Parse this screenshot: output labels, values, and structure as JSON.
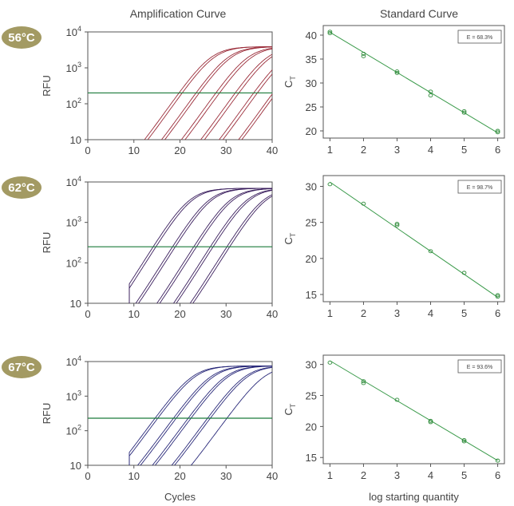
{
  "headers": {
    "amplification": "Amplification Curve",
    "standard": "Standard Curve"
  },
  "colors": {
    "badge": "#a39a63",
    "threshold": "#1a7a3a",
    "fit_line": "#3a9a4a",
    "point": "#2e8b3a"
  },
  "chart_data": [
    {
      "type": "line",
      "panel": "amplification",
      "badge": "56°C",
      "xlabel": "",
      "ylabel": "RFU",
      "log_y": true,
      "xlim": [
        0,
        40
      ],
      "ylim": [
        10,
        10000
      ],
      "x_ticks": [
        "0",
        "10",
        "20",
        "30",
        "40"
      ],
      "y_ticks": [
        "10",
        "10²",
        "10³",
        "10⁴"
      ],
      "threshold": 200,
      "plateau": 3900,
      "line_color": "#9b2d3a",
      "curves_ct": [
        19.8,
        20.5,
        23.5,
        24.2,
        27.8,
        28.6,
        32.0,
        32.8,
        36.0,
        36.8,
        40.2,
        40.9
      ]
    },
    {
      "type": "scatter",
      "panel": "standard",
      "fit": "linear",
      "efficiency_label": "E = 68.3%",
      "xlabel": "",
      "ylabel": "CT",
      "xlim": [
        0.8,
        6.2
      ],
      "ylim": [
        18.5,
        42
      ],
      "x_ticks": [
        1,
        2,
        3,
        4,
        5,
        6
      ],
      "y_ticks": [
        20,
        25,
        30,
        35,
        40
      ],
      "points": [
        [
          1,
          40.4
        ],
        [
          1,
          40.7
        ],
        [
          2,
          35.6
        ],
        [
          2,
          36.1
        ],
        [
          3,
          32.1
        ],
        [
          3,
          32.4
        ],
        [
          4,
          27.4
        ],
        [
          4,
          28.2
        ],
        [
          5,
          23.8
        ],
        [
          5,
          24.1
        ],
        [
          6,
          19.7
        ],
        [
          6,
          20.0
        ]
      ],
      "line": [
        [
          1,
          40.6
        ],
        [
          6,
          19.6
        ]
      ]
    },
    {
      "type": "line",
      "panel": "amplification",
      "badge": "62°C",
      "xlabel": "",
      "ylabel": "RFU",
      "log_y": true,
      "xlim": [
        0,
        40
      ],
      "ylim": [
        10,
        10000
      ],
      "x_ticks": [
        "0",
        "10",
        "20",
        "30",
        "40"
      ],
      "y_ticks": [
        "10",
        "10²",
        "10³",
        "10⁴"
      ],
      "threshold": 250,
      "plateau": 7000,
      "line_color": "#3b1f5e",
      "curves_ct": [
        14.2,
        14.8,
        18.4,
        19.0,
        23.0,
        23.6,
        26.6,
        27.2,
        30.2,
        30.8
      ],
      "min_x": 9
    },
    {
      "type": "scatter",
      "panel": "standard",
      "fit": "linear",
      "efficiency_label": "E = 98.7%",
      "xlabel": "",
      "ylabel": "CT",
      "xlim": [
        0.8,
        6.2
      ],
      "ylim": [
        14,
        31.5
      ],
      "x_ticks": [
        1,
        2,
        3,
        4,
        5,
        6
      ],
      "y_ticks": [
        15,
        20,
        25,
        30
      ],
      "points": [
        [
          1,
          30.3
        ],
        [
          2,
          27.6
        ],
        [
          3,
          24.6
        ],
        [
          3,
          24.8
        ],
        [
          4,
          21.0
        ],
        [
          5,
          18.0
        ],
        [
          6,
          14.7
        ],
        [
          6,
          14.9
        ]
      ],
      "line": [
        [
          1,
          30.6
        ],
        [
          6,
          14.6
        ]
      ]
    },
    {
      "type": "line",
      "panel": "amplification",
      "badge": "67°C",
      "xlabel": "Cycles",
      "ylabel": "RFU",
      "log_y": true,
      "xlim": [
        0,
        40
      ],
      "ylim": [
        10,
        10000
      ],
      "x_ticks": [
        "0",
        "10",
        "20",
        "30",
        "40"
      ],
      "y_ticks": [
        "10",
        "10²",
        "10³",
        "10⁴"
      ],
      "threshold": 230,
      "plateau": 7500,
      "line_color": "#2a2a7a",
      "curves_ct": [
        14.6,
        15.2,
        18.6,
        19.2,
        21.8,
        22.4,
        26.0,
        26.6,
        30.2
      ],
      "min_x": 9
    },
    {
      "type": "scatter",
      "panel": "standard",
      "fit": "linear",
      "efficiency_label": "E = 93.6%",
      "xlabel": "log starting quantity",
      "ylabel": "CT",
      "xlim": [
        0.8,
        6.2
      ],
      "ylim": [
        14,
        31.5
      ],
      "x_ticks": [
        1,
        2,
        3,
        4,
        5,
        6
      ],
      "y_ticks": [
        15,
        20,
        25,
        30
      ],
      "points": [
        [
          1,
          30.3
        ],
        [
          2,
          27.0
        ],
        [
          2,
          27.3
        ],
        [
          3,
          24.3
        ],
        [
          4,
          20.7
        ],
        [
          4,
          20.9
        ],
        [
          5,
          17.6
        ],
        [
          5,
          17.8
        ],
        [
          6,
          14.5
        ]
      ],
      "line": [
        [
          1,
          30.6
        ],
        [
          6,
          14.5
        ]
      ]
    }
  ]
}
